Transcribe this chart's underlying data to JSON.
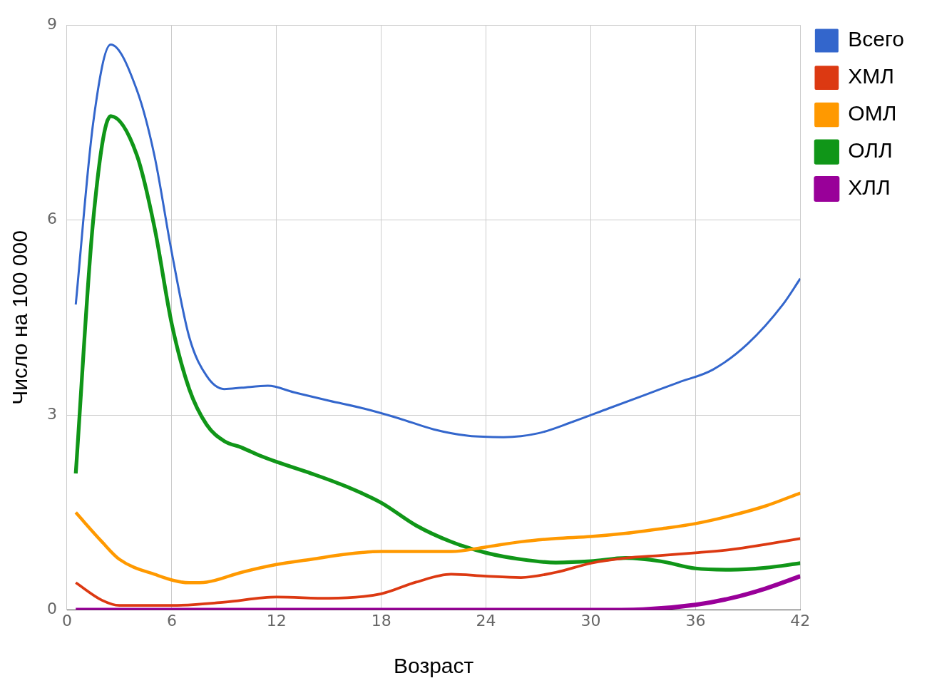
{
  "chart_data": {
    "type": "line",
    "xlabel": "Возраст",
    "ylabel": "Число на 100 000",
    "xlim": [
      0,
      42
    ],
    "xticks": [
      0,
      6,
      12,
      18,
      24,
      30,
      36,
      42
    ],
    "ylim": [
      0,
      9
    ],
    "yticks": [
      0,
      3,
      6,
      9
    ],
    "grid": true,
    "legend": "top right",
    "marker": "none",
    "line_style": "solid",
    "series": [
      {
        "name": "Всего",
        "color": "#3366cc",
        "x": [
          0.5,
          1.5,
          2.5,
          4,
          5,
          6,
          7,
          8,
          9,
          10,
          11.5,
          13,
          15,
          17,
          19,
          21,
          23,
          25,
          27,
          29,
          31,
          33,
          35,
          37,
          39,
          41,
          42
        ],
        "values": [
          4.7,
          7.5,
          8.7,
          8.0,
          7.0,
          5.5,
          4.2,
          3.6,
          3.4,
          3.42,
          3.45,
          3.35,
          3.22,
          3.1,
          2.95,
          2.78,
          2.68,
          2.66,
          2.72,
          2.9,
          3.1,
          3.3,
          3.5,
          3.7,
          4.1,
          4.7,
          5.1
        ]
      },
      {
        "name": "ХМЛ",
        "color": "#dc3912",
        "x": [
          0.5,
          2,
          3,
          6,
          9,
          12,
          15,
          18,
          20,
          22,
          24,
          26,
          28,
          30,
          32,
          34,
          36,
          38,
          40,
          42
        ],
        "values": [
          0.42,
          0.15,
          0.07,
          0.07,
          0.12,
          0.2,
          0.18,
          0.25,
          0.43,
          0.55,
          0.52,
          0.5,
          0.58,
          0.72,
          0.8,
          0.84,
          0.88,
          0.93,
          1.01,
          1.1
        ]
      },
      {
        "name": "ОМЛ",
        "color": "#ff9900",
        "x": [
          0.5,
          2,
          3,
          5,
          7,
          8,
          10,
          12,
          14,
          16,
          18,
          20,
          22,
          24,
          26,
          28,
          30,
          32,
          34,
          36,
          38,
          40,
          42
        ],
        "values": [
          1.5,
          1.05,
          0.78,
          0.55,
          0.42,
          0.43,
          0.58,
          0.7,
          0.78,
          0.86,
          0.9,
          0.9,
          0.9,
          0.97,
          1.05,
          1.1,
          1.13,
          1.18,
          1.25,
          1.33,
          1.45,
          1.6,
          1.8
        ]
      },
      {
        "name": "ОЛЛ",
        "color": "#109618",
        "x": [
          0.5,
          1.5,
          2.5,
          4,
          5,
          6,
          7,
          8,
          9,
          10,
          11,
          12,
          14,
          16,
          18,
          20,
          22,
          24,
          26,
          28,
          30,
          32,
          34,
          36,
          38,
          40,
          42
        ],
        "values": [
          2.1,
          6.0,
          7.6,
          7.0,
          5.9,
          4.4,
          3.4,
          2.85,
          2.6,
          2.5,
          2.38,
          2.28,
          2.1,
          1.9,
          1.65,
          1.3,
          1.05,
          0.88,
          0.78,
          0.73,
          0.75,
          0.8,
          0.75,
          0.64,
          0.62,
          0.65,
          0.72
        ]
      },
      {
        "name": "ХЛЛ",
        "color": "#990099",
        "x": [
          0.5,
          30,
          33,
          36,
          38,
          40,
          42
        ],
        "values": [
          0,
          0,
          0.01,
          0.08,
          0.18,
          0.33,
          0.52
        ]
      }
    ]
  }
}
